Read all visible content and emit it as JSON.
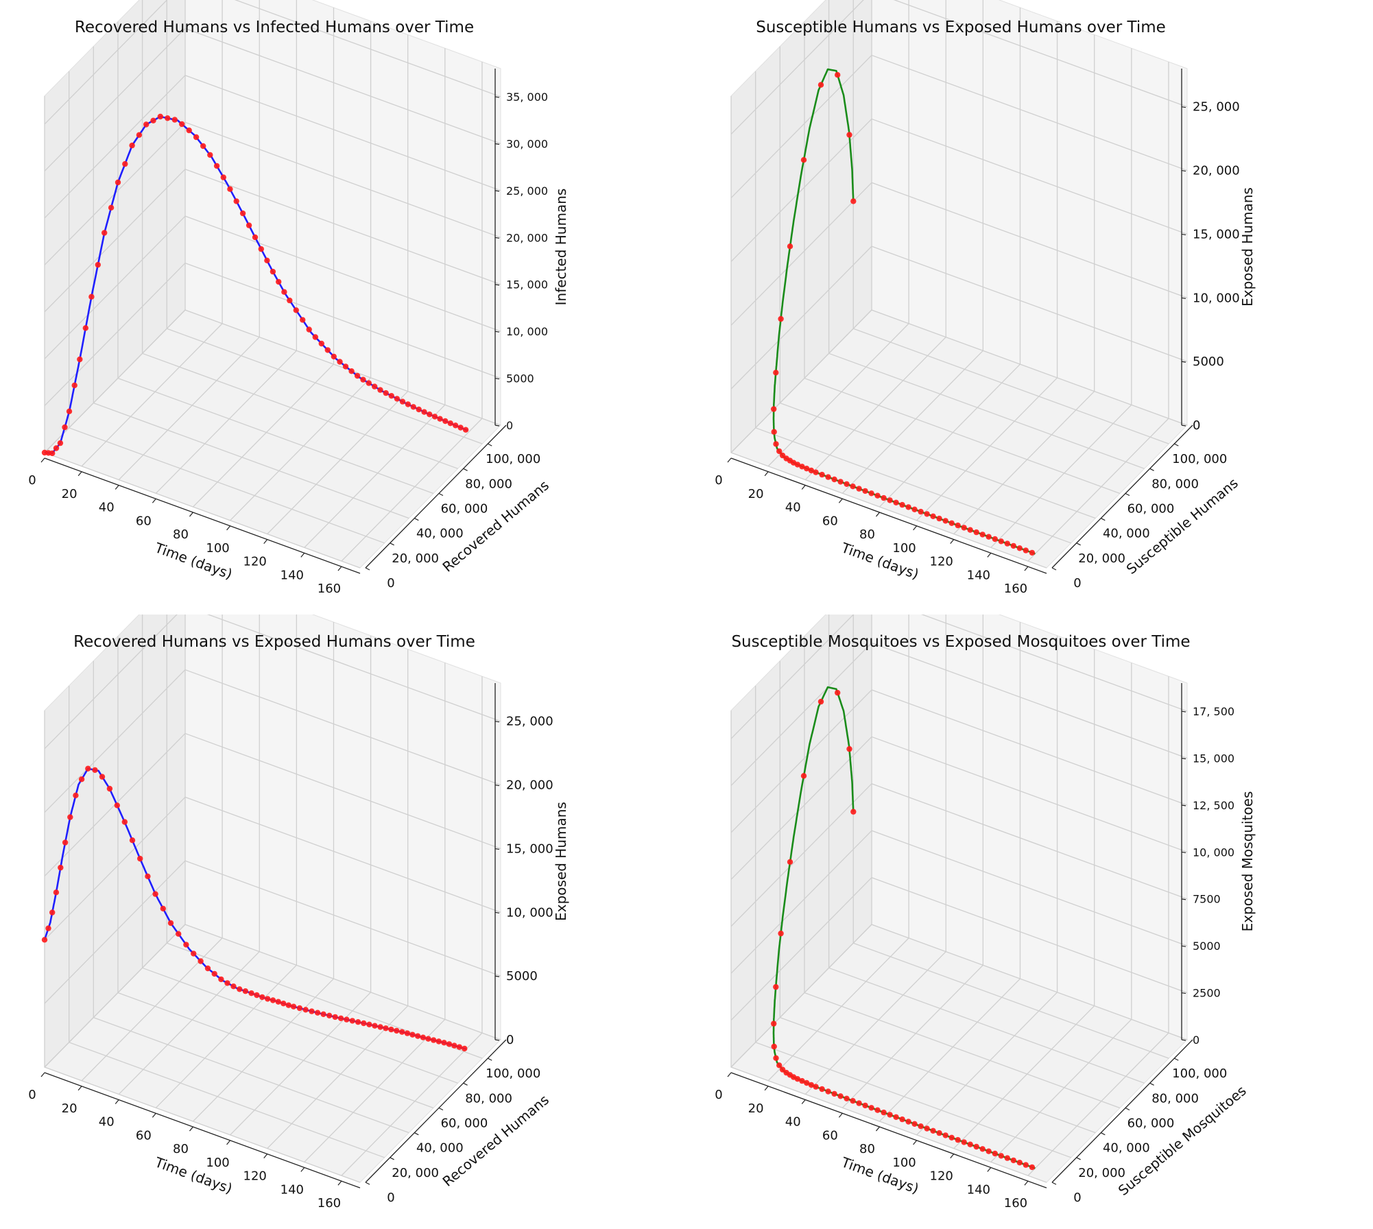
{
  "chart_data": [
    {
      "type": "line3d",
      "title": "Recovered Humans vs Infected Humans over Time",
      "xlabel": "Time (days)",
      "ylabel": "Recovered Humans",
      "zlabel": "Infected Humans",
      "xticks": [
        0,
        20,
        40,
        60,
        80,
        100,
        120,
        140,
        160
      ],
      "yticks": [
        "0",
        "20, 000",
        "40, 000",
        "60, 000",
        "80, 000",
        "100, 000"
      ],
      "zticks": [
        "0",
        "5000",
        "10, 000",
        "15, 000",
        "20, 000",
        "25, 000",
        "30, 000",
        "35, 000"
      ],
      "xlim": [
        0,
        170
      ],
      "ylim": [
        0,
        115000
      ],
      "zlim": [
        0,
        38000
      ],
      "line_color": "#1f1fff",
      "marker_color": "#ff1a1a",
      "series": [
        {
          "name": "trajectory",
          "t": [
            0,
            4,
            8,
            12,
            16,
            20,
            24,
            28,
            32,
            36,
            40,
            45,
            50,
            55,
            60,
            65,
            70,
            75,
            80,
            90,
            100,
            110,
            120,
            130,
            140,
            150,
            160
          ],
          "y": [
            0,
            200,
            700,
            2000,
            4500,
            8000,
            12500,
            17500,
            23000,
            28500,
            34000,
            40500,
            47000,
            53000,
            58500,
            63500,
            68000,
            72000,
            75500,
            81500,
            86500,
            90500,
            94000,
            97000,
            99500,
            101500,
            103000
          ],
          "z": [
            0,
            200,
            1500,
            5000,
            10500,
            17000,
            23500,
            28500,
            32000,
            33800,
            34200,
            33300,
            31200,
            28500,
            25200,
            21800,
            18500,
            15400,
            12700,
            8500,
            5800,
            4000,
            2800,
            1900,
            1200,
            700,
            300
          ]
        }
      ]
    },
    {
      "type": "line3d",
      "title": "Susceptible Humans vs Exposed Humans over Time",
      "xlabel": "Time (days)",
      "ylabel": "Susceptible Humans",
      "zlabel": "Exposed Humans",
      "xticks": [
        0,
        20,
        40,
        60,
        80,
        100,
        120,
        140,
        160
      ],
      "yticks": [
        "0",
        "20, 000",
        "40, 000",
        "60, 000",
        "80, 000",
        "100, 000"
      ],
      "zticks": [
        "0",
        "5000",
        "10, 000",
        "15, 000",
        "20, 000",
        "25, 000"
      ],
      "xlim": [
        0,
        170
      ],
      "ylim": [
        0,
        115000
      ],
      "zlim": [
        0,
        28000
      ],
      "line_color": "#1a8c1a",
      "marker_color": "#ff1a1a",
      "series": [
        {
          "name": "trajectory",
          "t": [
            0,
            1,
            2,
            3,
            4,
            5,
            6,
            7,
            8,
            9,
            10,
            11,
            12,
            13,
            14,
            15,
            16,
            17,
            18,
            20,
            24,
            30,
            40,
            60,
            80,
            100,
            120,
            140,
            160
          ],
          "y": [
            100000,
            97500,
            93500,
            87500,
            80000,
            71500,
            62500,
            53500,
            45000,
            37500,
            31000,
            25500,
            21000,
            17500,
            14500,
            12200,
            10500,
            9200,
            8300,
            7200,
            6600,
            6300,
            6100,
            6000,
            5950,
            5900,
            5880,
            5860,
            5850
          ],
          "z": [
            10000,
            12800,
            16200,
            19700,
            22400,
            23400,
            22700,
            20600,
            17800,
            15000,
            12300,
            9900,
            7800,
            6000,
            4600,
            3400,
            2500,
            1800,
            1300,
            700,
            300,
            150,
            80,
            50,
            30,
            20,
            10,
            5,
            0
          ]
        }
      ]
    },
    {
      "type": "line3d",
      "title": "Recovered Humans vs Exposed Humans over Time",
      "xlabel": "Time (days)",
      "ylabel": "Recovered Humans",
      "zlabel": "Exposed Humans",
      "xticks": [
        0,
        20,
        40,
        60,
        80,
        100,
        120,
        140,
        160
      ],
      "yticks": [
        "0",
        "20, 000",
        "40, 000",
        "60, 000",
        "80, 000",
        "100, 000"
      ],
      "zticks": [
        "0",
        "5000",
        "10, 000",
        "15, 000",
        "20, 000",
        "25, 000"
      ],
      "xlim": [
        0,
        170
      ],
      "ylim": [
        0,
        115000
      ],
      "zlim": [
        0,
        28000
      ],
      "line_color": "#1f1fff",
      "marker_color": "#ff1a1a",
      "series": [
        {
          "name": "trajectory",
          "t": [
            0,
            3,
            6,
            9,
            12,
            15,
            18,
            21,
            24,
            28,
            32,
            36,
            40,
            45,
            50,
            55,
            60,
            65,
            70,
            75,
            80,
            90,
            100,
            110,
            120,
            130,
            140,
            150,
            160
          ],
          "y": [
            0,
            100,
            400,
            1200,
            2700,
            5000,
            8200,
            12200,
            16800,
            23000,
            29500,
            36000,
            42500,
            50000,
            56500,
            62000,
            66500,
            70500,
            73500,
            76500,
            79000,
            83500,
            87500,
            91000,
            94000,
            96500,
            98500,
            100500,
            102000
          ],
          "z": [
            10000,
            11500,
            14000,
            17000,
            20000,
            22500,
            23600,
            23200,
            21500,
            18500,
            15200,
            12000,
            9300,
            6800,
            5000,
            3700,
            2900,
            2400,
            2000,
            1700,
            1400,
            1000,
            700,
            500,
            350,
            250,
            150,
            80,
            0
          ]
        }
      ]
    },
    {
      "type": "line3d",
      "title": "Susceptible Mosquitoes vs Exposed Mosquitoes over Time",
      "xlabel": "Time (days)",
      "ylabel": "Susceptible Mosquitoes",
      "zlabel": "Exposed Mosquitoes",
      "xticks": [
        0,
        20,
        40,
        60,
        80,
        100,
        120,
        140,
        160
      ],
      "yticks": [
        "0",
        "20, 000",
        "40, 000",
        "60, 000",
        "80, 000",
        "100, 000"
      ],
      "zticks": [
        "0",
        "2500",
        "5000",
        "7500",
        "10, 000",
        "12, 500",
        "15, 000",
        "17, 500"
      ],
      "xlim": [
        0,
        170
      ],
      "ylim": [
        0,
        115000
      ],
      "zlim": [
        0,
        19000
      ],
      "line_color": "#1a8c1a",
      "marker_color": "#ff1a1a",
      "series": [
        {
          "name": "trajectory",
          "t": [
            0,
            1,
            2,
            3,
            4,
            5,
            6,
            7,
            8,
            9,
            10,
            11,
            12,
            13,
            14,
            15,
            16,
            17,
            18,
            20,
            24,
            30,
            40,
            60,
            80,
            100,
            120,
            140,
            160
          ],
          "y": [
            100000,
            97500,
            93500,
            87500,
            80000,
            71500,
            62500,
            53500,
            45000,
            37500,
            31000,
            25500,
            21000,
            17500,
            14500,
            12200,
            10500,
            9200,
            8300,
            7200,
            6600,
            6300,
            6100,
            6000,
            5950,
            5900,
            5880,
            5860,
            5850
          ],
          "z": [
            7000,
            8800,
            11000,
            13300,
            15000,
            15700,
            15300,
            13900,
            12000,
            10100,
            8300,
            6700,
            5300,
            4100,
            3100,
            2300,
            1700,
            1200,
            900,
            500,
            220,
            110,
            60,
            35,
            20,
            12,
            8,
            4,
            0
          ]
        }
      ]
    }
  ]
}
